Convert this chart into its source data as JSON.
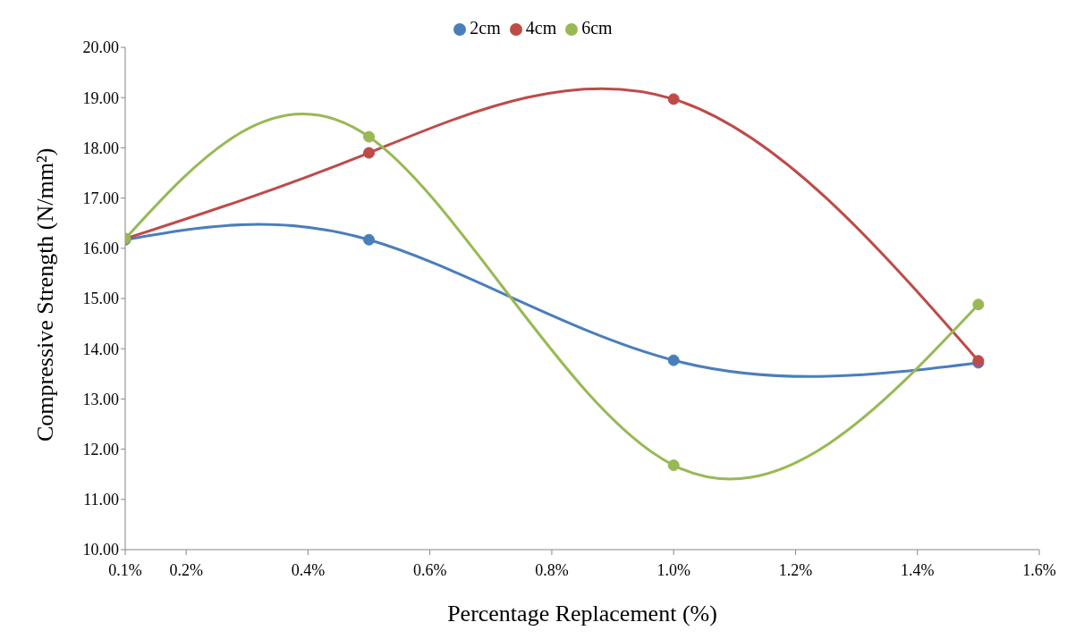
{
  "chart_data": {
    "type": "line",
    "xlabel": "Percentage Replacement (%)",
    "ylabel": "Compressive Strength (N/mm²)",
    "x": [
      0.1,
      0.5,
      1.0,
      1.5
    ],
    "series": [
      {
        "name": "2cm",
        "color": "#4a7ebb",
        "values": [
          16.17,
          16.17,
          13.77,
          13.72
        ]
      },
      {
        "name": "4cm",
        "color": "#be4b48",
        "values": [
          16.19,
          17.9,
          18.97,
          13.76
        ]
      },
      {
        "name": "6cm",
        "color": "#98b954",
        "values": [
          16.19,
          18.22,
          11.68,
          14.88
        ]
      }
    ],
    "xlim": [
      0.1,
      1.6
    ],
    "xticks": [
      {
        "value": 0.1,
        "label": "0.1%"
      },
      {
        "value": 0.2,
        "label": "0.2%"
      },
      {
        "value": 0.4,
        "label": "0.4%"
      },
      {
        "value": 0.6,
        "label": "0.6%"
      },
      {
        "value": 0.8,
        "label": "0.8%"
      },
      {
        "value": 1.0,
        "label": "1.0%"
      },
      {
        "value": 1.2,
        "label": "1.2%"
      },
      {
        "value": 1.4,
        "label": "1.4%"
      },
      {
        "value": 1.6,
        "label": "1.6%"
      }
    ],
    "ylim": [
      10,
      20
    ],
    "yticks": [
      {
        "value": 10,
        "label": "10.00"
      },
      {
        "value": 11,
        "label": "11.00"
      },
      {
        "value": 12,
        "label": "12.00"
      },
      {
        "value": 13,
        "label": "13.00"
      },
      {
        "value": 14,
        "label": "14.00"
      },
      {
        "value": 15,
        "label": "15.00"
      },
      {
        "value": 16,
        "label": "16.00"
      },
      {
        "value": 17,
        "label": "17.00"
      },
      {
        "value": 18,
        "label": "18.00"
      },
      {
        "value": 19,
        "label": "19.00"
      },
      {
        "value": 20,
        "label": "20.00"
      }
    ],
    "grid": false,
    "legend": "top",
    "marker": "circle",
    "line_style": "solid"
  }
}
